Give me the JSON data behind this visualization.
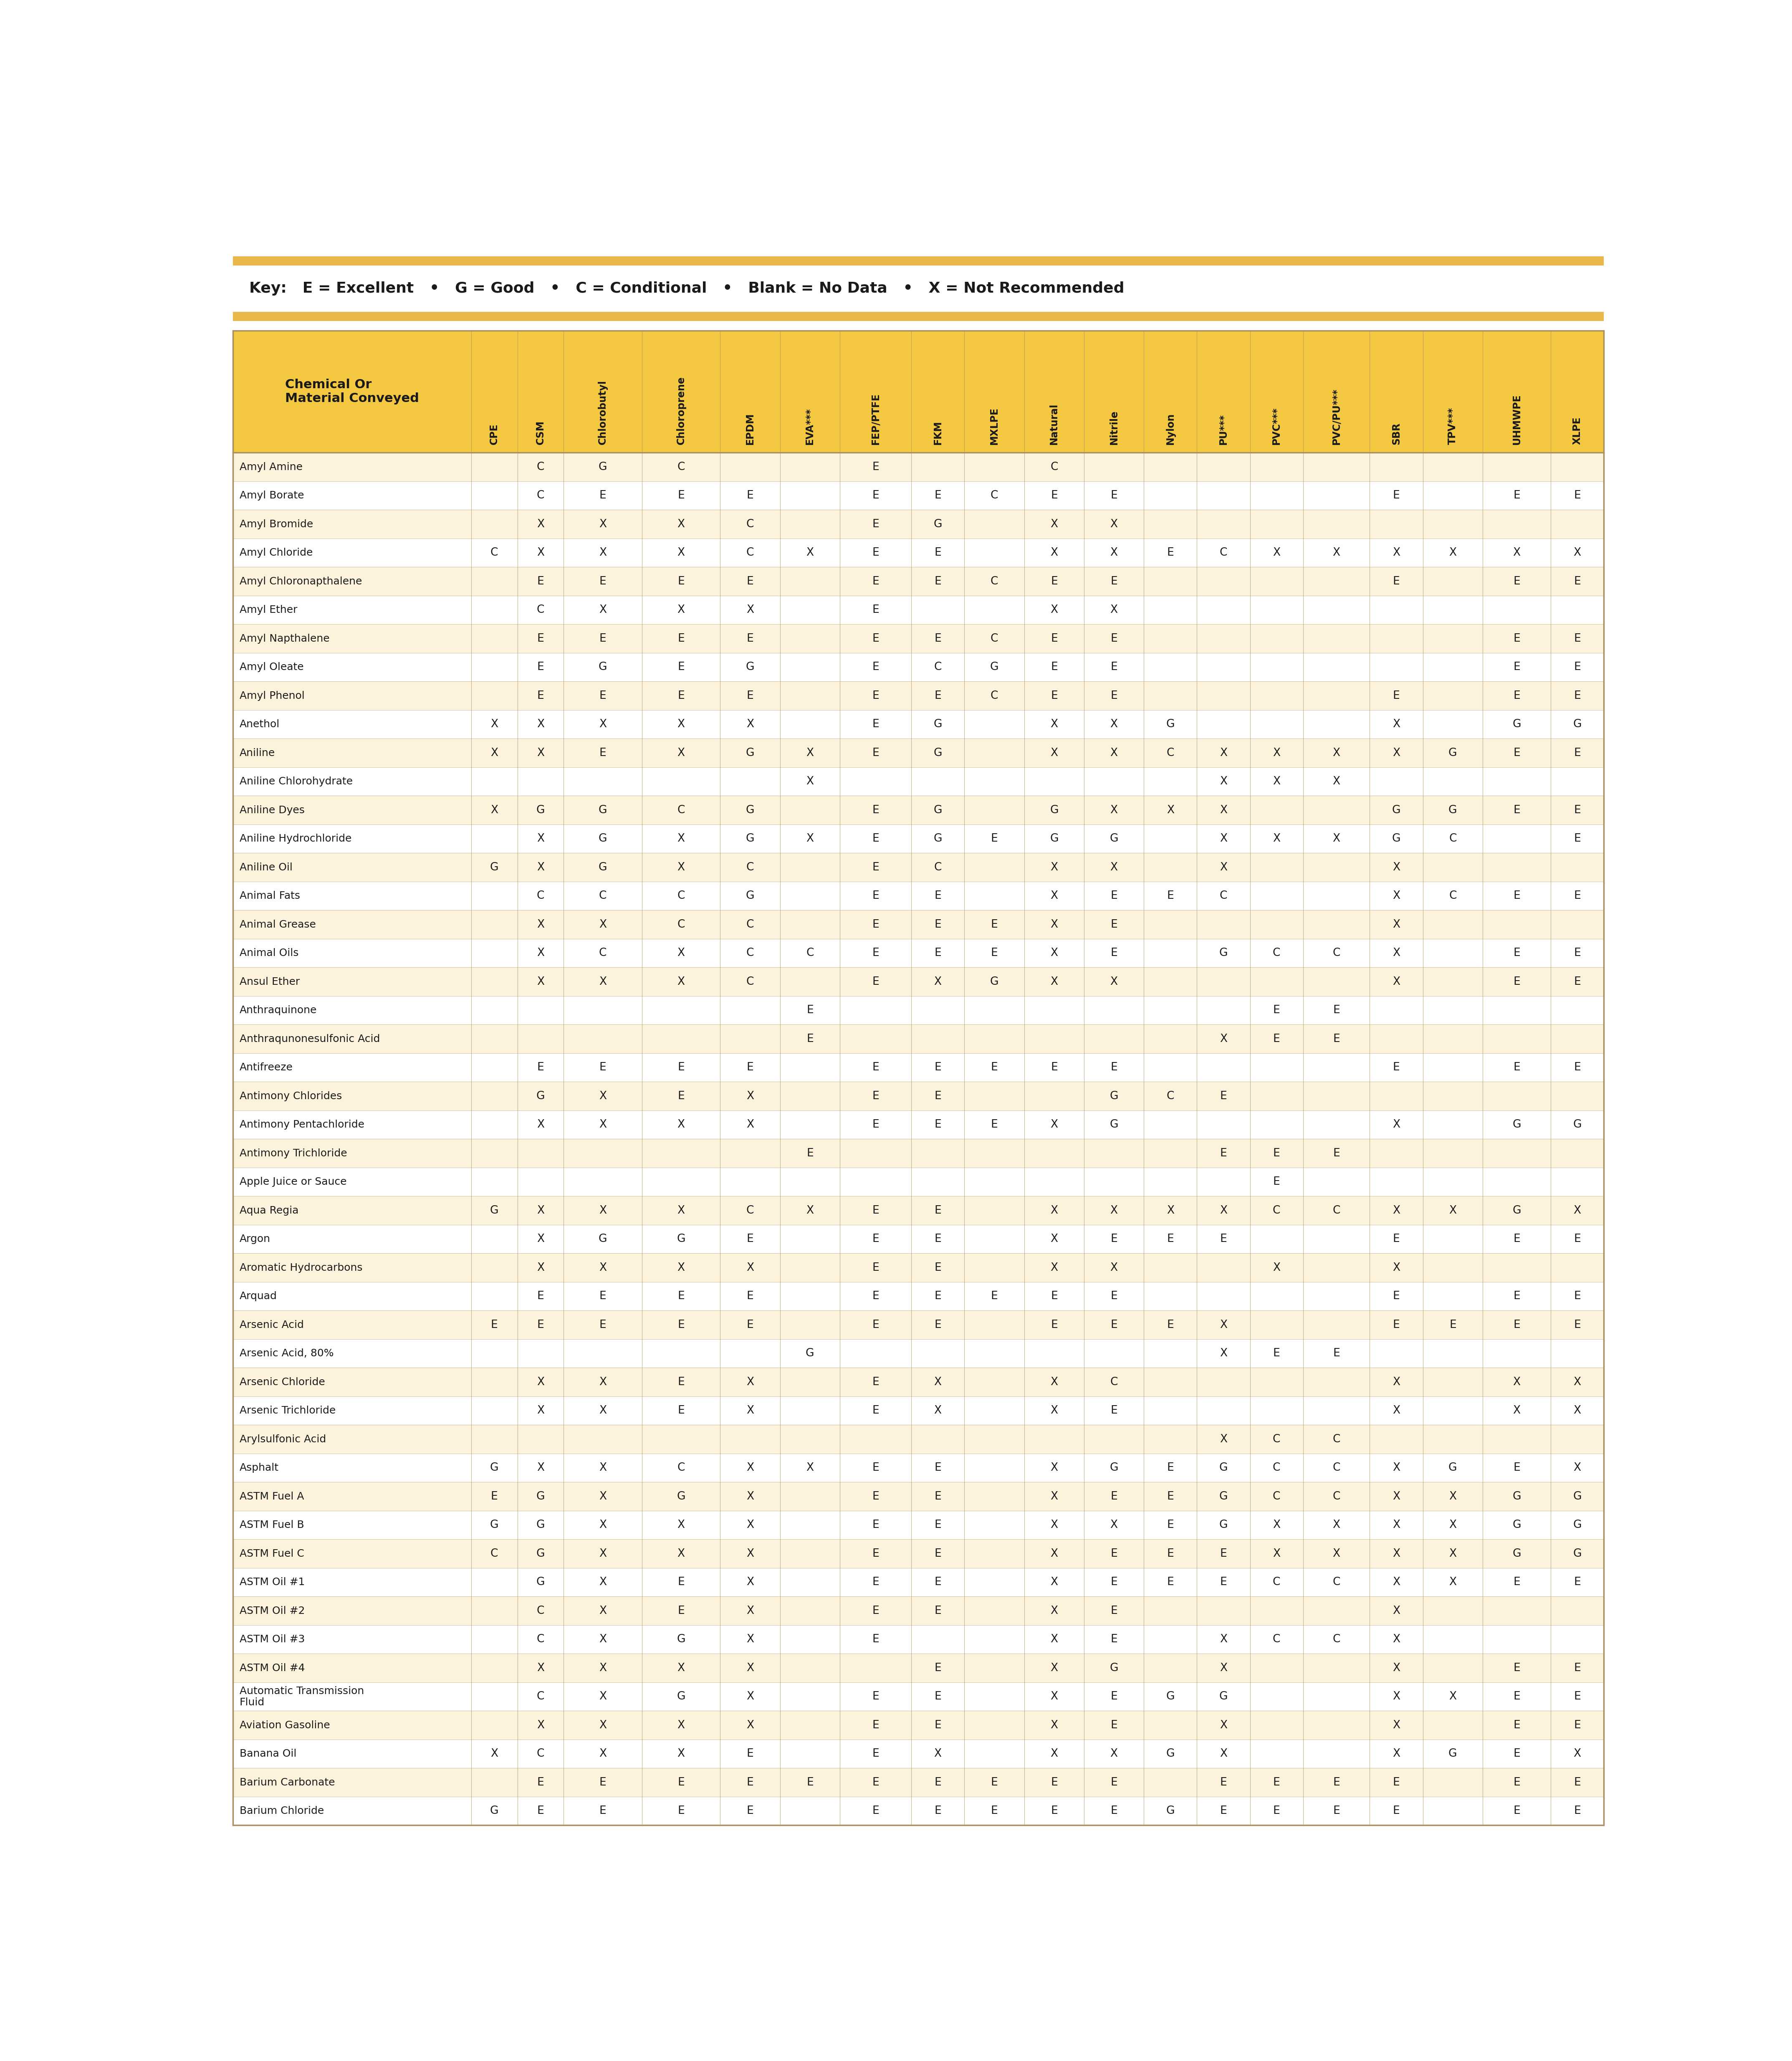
{
  "key_border_color": "#E8B84B",
  "key_bg": "#FFFFFF",
  "table_header_bg": "#F5C842",
  "row_bg_odd": "#FDF3DC",
  "row_bg_even": "#FFFFFF",
  "border_color": "#A89060",
  "text_color": "#1A1A1A",
  "key_text": "Key:   E = Excellent   •   G = Good   •   C = Conditional   •   Blank = No Data   •   X = Not Recommended",
  "col_header_label": "Chemical Or\nMaterial Conveyed",
  "columns": [
    "CPE",
    "CSM",
    "Chlorobutyl",
    "Chloroprene",
    "EPDM",
    "EVA***",
    "FEP/PTFE",
    "FKM",
    "MXLPE",
    "Natural",
    "Nitrile",
    "Nylon",
    "PU***",
    "PVC***",
    "PVC/PU***",
    "SBR",
    "TPV***",
    "UHMWPE",
    "XLPE"
  ],
  "rows": [
    [
      "Amyl Amine",
      "",
      "C",
      "G",
      "C",
      "",
      "",
      "E",
      "",
      "",
      "C",
      "",
      "",
      "",
      "",
      "",
      "",
      "",
      "",
      ""
    ],
    [
      "Amyl Borate",
      "",
      "C",
      "E",
      "E",
      "E",
      "",
      "E",
      "E",
      "C",
      "E",
      "E",
      "",
      "",
      "",
      "",
      "E",
      "",
      "E",
      "E"
    ],
    [
      "Amyl Bromide",
      "",
      "X",
      "X",
      "X",
      "C",
      "",
      "E",
      "G",
      "",
      "X",
      "X",
      "",
      "",
      "",
      "",
      "",
      "",
      "",
      ""
    ],
    [
      "Amyl Chloride",
      "C",
      "X",
      "X",
      "X",
      "C",
      "X",
      "E",
      "E",
      "",
      "X",
      "X",
      "E",
      "C",
      "X",
      "X",
      "X",
      "X",
      "X",
      "X"
    ],
    [
      "Amyl Chloronapthalene",
      "",
      "E",
      "E",
      "E",
      "E",
      "",
      "E",
      "E",
      "C",
      "E",
      "E",
      "",
      "",
      "",
      "",
      "E",
      "",
      "E",
      "E"
    ],
    [
      "Amyl Ether",
      "",
      "C",
      "X",
      "X",
      "X",
      "",
      "E",
      "",
      "",
      "X",
      "X",
      "",
      "",
      "",
      "",
      "",
      "",
      "",
      ""
    ],
    [
      "Amyl Napthalene",
      "",
      "E",
      "E",
      "E",
      "E",
      "",
      "E",
      "E",
      "C",
      "E",
      "E",
      "",
      "",
      "",
      "",
      "",
      "",
      "E",
      "E"
    ],
    [
      "Amyl Oleate",
      "",
      "E",
      "G",
      "E",
      "G",
      "",
      "E",
      "C",
      "G",
      "E",
      "E",
      "",
      "",
      "",
      "",
      "",
      "",
      "E",
      "E"
    ],
    [
      "Amyl Phenol",
      "",
      "E",
      "E",
      "E",
      "E",
      "",
      "E",
      "E",
      "C",
      "E",
      "E",
      "",
      "",
      "",
      "",
      "E",
      "",
      "E",
      "E"
    ],
    [
      "Anethol",
      "X",
      "X",
      "X",
      "X",
      "X",
      "",
      "E",
      "G",
      "",
      "X",
      "X",
      "G",
      "",
      "",
      "",
      "X",
      "",
      "G",
      "G"
    ],
    [
      "Aniline",
      "X",
      "X",
      "E",
      "X",
      "G",
      "X",
      "E",
      "G",
      "",
      "X",
      "X",
      "C",
      "X",
      "X",
      "X",
      "X",
      "G",
      "E",
      "E"
    ],
    [
      "Aniline Chlorohydrate",
      "",
      "",
      "",
      "",
      "",
      "X",
      "",
      "",
      "",
      "",
      "",
      "",
      "X",
      "X",
      "X",
      "",
      "",
      "",
      ""
    ],
    [
      "Aniline Dyes",
      "X",
      "G",
      "G",
      "C",
      "G",
      "",
      "E",
      "G",
      "",
      "G",
      "X",
      "X",
      "X",
      "",
      "",
      "G",
      "G",
      "E",
      "E"
    ],
    [
      "Aniline Hydrochloride",
      "",
      "X",
      "G",
      "X",
      "G",
      "X",
      "E",
      "G",
      "E",
      "G",
      "G",
      "",
      "X",
      "X",
      "X",
      "G",
      "C",
      "",
      "E"
    ],
    [
      "Aniline Oil",
      "G",
      "X",
      "G",
      "X",
      "C",
      "",
      "E",
      "C",
      "",
      "X",
      "X",
      "",
      "X",
      "",
      "",
      "X",
      "",
      "",
      ""
    ],
    [
      "Animal Fats",
      "",
      "C",
      "C",
      "C",
      "G",
      "",
      "E",
      "E",
      "",
      "X",
      "E",
      "E",
      "C",
      "",
      "",
      "X",
      "C",
      "E",
      "E"
    ],
    [
      "Animal Grease",
      "",
      "X",
      "X",
      "C",
      "C",
      "",
      "E",
      "E",
      "E",
      "X",
      "E",
      "",
      "",
      "",
      "",
      "X",
      "",
      "",
      ""
    ],
    [
      "Animal Oils",
      "",
      "X",
      "C",
      "X",
      "C",
      "C",
      "E",
      "E",
      "E",
      "X",
      "E",
      "",
      "G",
      "C",
      "C",
      "X",
      "",
      "E",
      "E"
    ],
    [
      "Ansul Ether",
      "",
      "X",
      "X",
      "X",
      "C",
      "",
      "E",
      "X",
      "G",
      "X",
      "X",
      "",
      "",
      "",
      "",
      "X",
      "",
      "E",
      "E"
    ],
    [
      "Anthraquinone",
      "",
      "",
      "",
      "",
      "",
      "E",
      "",
      "",
      "",
      "",
      "",
      "",
      "",
      "E",
      "E",
      "",
      "",
      "",
      ""
    ],
    [
      "Anthraqunonesulfonic Acid",
      "",
      "",
      "",
      "",
      "",
      "E",
      "",
      "",
      "",
      "",
      "",
      "",
      "X",
      "E",
      "E",
      "",
      "",
      "",
      ""
    ],
    [
      "Antifreeze",
      "",
      "E",
      "E",
      "E",
      "E",
      "",
      "E",
      "E",
      "E",
      "E",
      "E",
      "",
      "",
      "",
      "",
      "E",
      "",
      "E",
      "E"
    ],
    [
      "Antimony Chlorides",
      "",
      "G",
      "X",
      "E",
      "X",
      "",
      "E",
      "E",
      "",
      "",
      "G",
      "C",
      "E",
      "",
      "",
      "",
      "",
      "",
      ""
    ],
    [
      "Antimony Pentachloride",
      "",
      "X",
      "X",
      "X",
      "X",
      "",
      "E",
      "E",
      "E",
      "X",
      "G",
      "",
      "",
      "",
      "",
      "X",
      "",
      "G",
      "G"
    ],
    [
      "Antimony Trichloride",
      "",
      "",
      "",
      "",
      "",
      "E",
      "",
      "",
      "",
      "",
      "",
      "",
      "E",
      "E",
      "E",
      "",
      "",
      "",
      ""
    ],
    [
      "Apple Juice or Sauce",
      "",
      "",
      "",
      "",
      "",
      "",
      "",
      "",
      "",
      "",
      "",
      "",
      "",
      "E",
      "",
      "",
      "",
      "",
      ""
    ],
    [
      "Aqua Regia",
      "G",
      "X",
      "X",
      "X",
      "C",
      "X",
      "E",
      "E",
      "",
      "X",
      "X",
      "X",
      "X",
      "C",
      "C",
      "X",
      "X",
      "G",
      "X"
    ],
    [
      "Argon",
      "",
      "X",
      "G",
      "G",
      "E",
      "",
      "E",
      "E",
      "",
      "X",
      "E",
      "E",
      "E",
      "",
      "",
      "E",
      "",
      "E",
      "E"
    ],
    [
      "Aromatic Hydrocarbons",
      "",
      "X",
      "X",
      "X",
      "X",
      "",
      "E",
      "E",
      "",
      "X",
      "X",
      "",
      "",
      "X",
      "",
      "X",
      "",
      "",
      ""
    ],
    [
      "Arquad",
      "",
      "E",
      "E",
      "E",
      "E",
      "",
      "E",
      "E",
      "E",
      "E",
      "E",
      "",
      "",
      "",
      "",
      "E",
      "",
      "E",
      "E"
    ],
    [
      "Arsenic Acid",
      "E",
      "E",
      "E",
      "E",
      "E",
      "",
      "E",
      "E",
      "",
      "E",
      "E",
      "E",
      "X",
      "",
      "",
      "E",
      "E",
      "E",
      "E"
    ],
    [
      "Arsenic Acid, 80%",
      "",
      "",
      "",
      "",
      "",
      "G",
      "",
      "",
      "",
      "",
      "",
      "",
      "X",
      "E",
      "E",
      "",
      "",
      "",
      ""
    ],
    [
      "Arsenic Chloride",
      "",
      "X",
      "X",
      "E",
      "X",
      "",
      "E",
      "X",
      "",
      "X",
      "C",
      "",
      "",
      "",
      "",
      "X",
      "",
      "X",
      "X"
    ],
    [
      "Arsenic Trichloride",
      "",
      "X",
      "X",
      "E",
      "X",
      "",
      "E",
      "X",
      "",
      "X",
      "E",
      "",
      "",
      "",
      "",
      "X",
      "",
      "X",
      "X"
    ],
    [
      "Arylsulfonic Acid",
      "",
      "",
      "",
      "",
      "",
      "",
      "",
      "",
      "",
      "",
      "",
      "",
      "X",
      "C",
      "C",
      "",
      "",
      "",
      ""
    ],
    [
      "Asphalt",
      "G",
      "X",
      "X",
      "C",
      "X",
      "X",
      "E",
      "E",
      "",
      "X",
      "G",
      "E",
      "G",
      "C",
      "C",
      "X",
      "G",
      "E",
      "X"
    ],
    [
      "ASTM Fuel A",
      "E",
      "G",
      "X",
      "G",
      "X",
      "",
      "E",
      "E",
      "",
      "X",
      "E",
      "E",
      "G",
      "C",
      "C",
      "X",
      "X",
      "G",
      "G"
    ],
    [
      "ASTM Fuel B",
      "G",
      "G",
      "X",
      "X",
      "X",
      "",
      "E",
      "E",
      "",
      "X",
      "X",
      "E",
      "G",
      "X",
      "X",
      "X",
      "X",
      "G",
      "G"
    ],
    [
      "ASTM Fuel C",
      "C",
      "G",
      "X",
      "X",
      "X",
      "",
      "E",
      "E",
      "",
      "X",
      "E",
      "E",
      "E",
      "X",
      "X",
      "X",
      "X",
      "G",
      "G"
    ],
    [
      "ASTM Oil #1",
      "",
      "G",
      "X",
      "E",
      "X",
      "",
      "E",
      "E",
      "",
      "X",
      "E",
      "E",
      "E",
      "C",
      "C",
      "X",
      "X",
      "E",
      "E"
    ],
    [
      "ASTM Oil #2",
      "",
      "C",
      "X",
      "E",
      "X",
      "",
      "E",
      "E",
      "",
      "X",
      "E",
      "",
      "",
      "",
      "",
      "X",
      "",
      "",
      ""
    ],
    [
      "ASTM Oil #3",
      "",
      "C",
      "X",
      "G",
      "X",
      "",
      "E",
      "",
      "",
      "X",
      "E",
      "",
      "X",
      "C",
      "C",
      "X",
      "",
      "",
      ""
    ],
    [
      "ASTM Oil #4",
      "",
      "X",
      "X",
      "X",
      "X",
      "",
      "",
      "E",
      "",
      "X",
      "G",
      "",
      "X",
      "",
      "",
      "X",
      "",
      "E",
      "E"
    ],
    [
      "Automatic Transmission\nFluid",
      "",
      "C",
      "X",
      "G",
      "X",
      "",
      "E",
      "E",
      "",
      "X",
      "E",
      "G",
      "G",
      "",
      "",
      "X",
      "X",
      "E",
      "E"
    ],
    [
      "Aviation Gasoline",
      "",
      "X",
      "X",
      "X",
      "X",
      "",
      "E",
      "E",
      "",
      "X",
      "E",
      "",
      "X",
      "",
      "",
      "X",
      "",
      "E",
      "E"
    ],
    [
      "Banana Oil",
      "X",
      "C",
      "X",
      "X",
      "E",
      "",
      "E",
      "X",
      "",
      "X",
      "X",
      "G",
      "X",
      "",
      "",
      "X",
      "G",
      "E",
      "X"
    ],
    [
      "Barium Carbonate",
      "",
      "E",
      "E",
      "E",
      "E",
      "E",
      "E",
      "E",
      "E",
      "E",
      "E",
      "",
      "E",
      "E",
      "E",
      "E",
      "",
      "E",
      "E"
    ],
    [
      "Barium Chloride",
      "G",
      "E",
      "E",
      "E",
      "E",
      "",
      "E",
      "E",
      "E",
      "E",
      "E",
      "G",
      "E",
      "E",
      "E",
      "E",
      "",
      "E",
      "E"
    ]
  ],
  "col_widths_ratio": [
    3.5,
    0.68,
    0.68,
    1.15,
    1.15,
    0.88,
    0.88,
    1.05,
    0.78,
    0.88,
    0.88,
    0.88,
    0.78,
    0.78,
    0.78,
    0.98,
    0.78,
    0.88,
    1.0,
    0.78
  ]
}
